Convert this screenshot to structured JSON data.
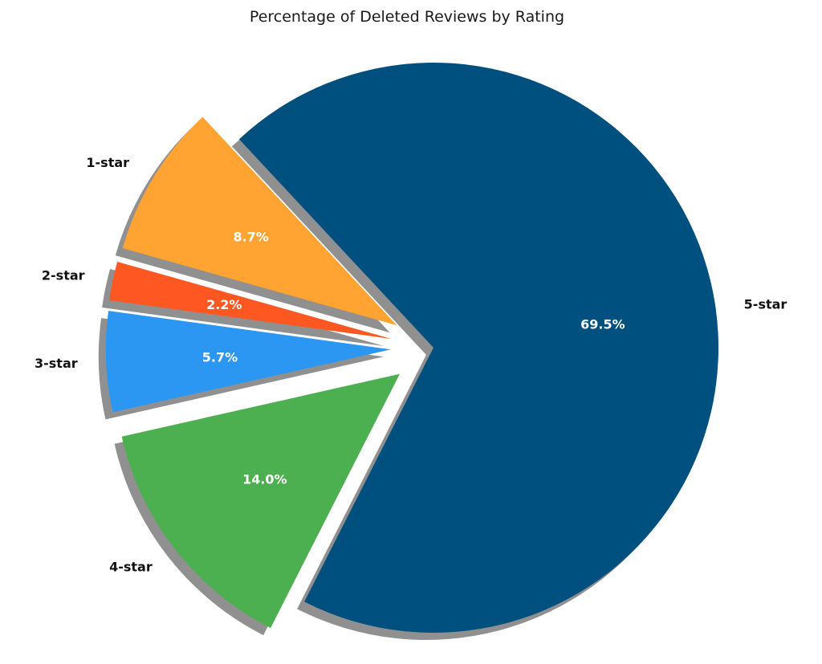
{
  "chart_data": {
    "type": "pie",
    "title": "Percentage of Deleted Reviews by Rating",
    "slices": [
      {
        "label": "1-star",
        "value": 8.7,
        "pct_label": "8.7%",
        "color": "#ffa333"
      },
      {
        "label": "2-star",
        "value": 2.2,
        "pct_label": "2.2%",
        "color": "#ff5722"
      },
      {
        "label": "3-star",
        "value": 5.7,
        "pct_label": "5.7%",
        "color": "#2b97f2"
      },
      {
        "label": "4-star",
        "value": 14.0,
        "pct_label": "14.0%",
        "color": "#4caf50"
      },
      {
        "label": "5-star",
        "value": 69.5,
        "pct_label": "69.5%",
        "color": "#00507f"
      }
    ],
    "shadow": true,
    "exploded": true,
    "legend": "none"
  }
}
